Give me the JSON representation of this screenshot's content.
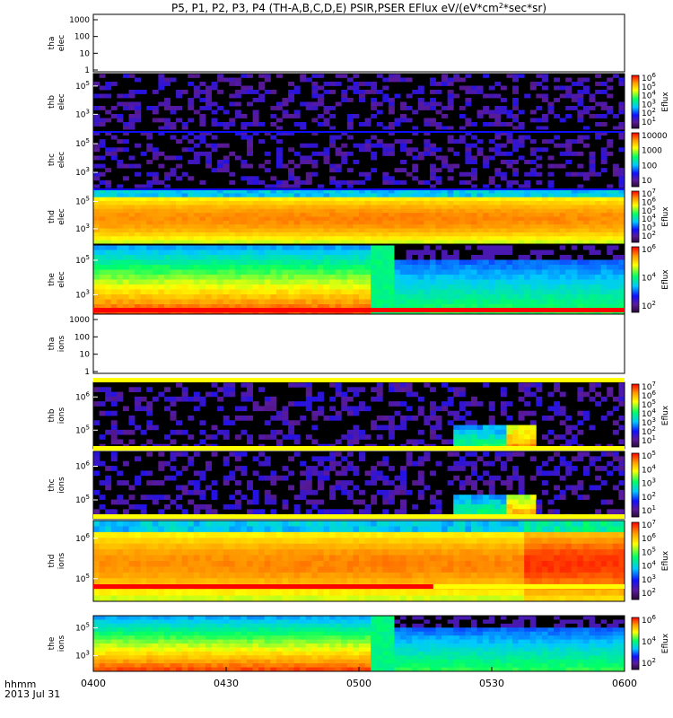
{
  "chart_data": {
    "type": "heatmap",
    "title_segments": [
      "P5, P1, P2, P3, P4 (TH-A,B,C,D,E) PSIR,PSER EFlux eV/(eV*cm",
      "2",
      "*sec*sr)"
    ],
    "x_ticks": [
      "0400",
      "0430",
      "0500",
      "0530",
      "0600"
    ],
    "x_label": [
      "hhmm",
      "2013 Jul 31"
    ],
    "panels": [
      {
        "name": "tha elec",
        "label": [
          "tha",
          "elec"
        ],
        "kind": "empty",
        "yticks": [
          "1000",
          "100",
          "10",
          "1"
        ]
      },
      {
        "name": "thb elec",
        "label": [
          "thb",
          "elec"
        ],
        "kind": "noise",
        "yticks": [
          "10^5",
          "10^3"
        ],
        "colorbar_ticks": [
          "10^6",
          "10^5",
          "10^4",
          "10^3",
          "10^2",
          "10^1"
        ],
        "colorbar_label": "Eflux"
      },
      {
        "name": "thc elec",
        "label": [
          "thc",
          "elec"
        ],
        "kind": "noise",
        "yticks": [
          "10^5",
          "10^3"
        ],
        "colorbar_ticks": [
          "10000",
          "1000",
          "100",
          "10"
        ],
        "colorbar_label": ""
      },
      {
        "name": "thd elec",
        "label": [
          "thd",
          "elec"
        ],
        "kind": "hot",
        "yticks": [
          "10^5",
          "10^3"
        ],
        "colorbar_ticks": [
          "10^7",
          "10^6",
          "10^5",
          "10^4",
          "10^3",
          "10^2"
        ],
        "colorbar_label": "Eflux"
      },
      {
        "name": "the elec",
        "label": [
          "the",
          "elec"
        ],
        "kind": "split",
        "yticks": [
          "10^5",
          "10^3"
        ],
        "colorbar_ticks": [
          "10^6",
          "10^4",
          "10^2"
        ],
        "colorbar_label": "Eflux"
      },
      {
        "name": "tha ions",
        "label": [
          "tha",
          "ions"
        ],
        "kind": "empty",
        "yticks": [
          "1000",
          "100",
          "10",
          "1"
        ]
      },
      {
        "name": "thb ions",
        "label": [
          "thb",
          "ions"
        ],
        "kind": "burst",
        "yticks": [
          "10^6",
          "10^5"
        ],
        "colorbar_ticks": [
          "10^7",
          "10^6",
          "10^5",
          "10^4",
          "10^3",
          "10^2",
          "10^1"
        ],
        "colorbar_label": "Eflux"
      },
      {
        "name": "thc ions",
        "label": [
          "thc",
          "ions"
        ],
        "kind": "burst",
        "yticks": [
          "10^6",
          "10^5"
        ],
        "colorbar_ticks": [
          "10^5",
          "10^4",
          "10^3",
          "10^2",
          "10^1"
        ],
        "colorbar_label": ""
      },
      {
        "name": "thd ions",
        "label": [
          "thd",
          "ions"
        ],
        "kind": "ionhot",
        "yticks": [
          "10^6",
          "10^5"
        ],
        "colorbar_ticks": [
          "10^7",
          "10^6",
          "10^5",
          "10^4",
          "10^3",
          "10^2"
        ],
        "colorbar_label": "Eflux"
      },
      {
        "name": "the ions",
        "label": [
          "the",
          "ions"
        ],
        "kind": "split",
        "yticks": [
          "10^5",
          "10^3"
        ],
        "colorbar_ticks": [
          "10^6",
          "10^4",
          "10^2"
        ],
        "colorbar_label": "Eflux"
      }
    ],
    "colors": {
      "black": "#000000",
      "purple": "#5a1a86",
      "blue": "#1010ff",
      "red": "#ff0000",
      "yellow": "#ffff00"
    }
  }
}
